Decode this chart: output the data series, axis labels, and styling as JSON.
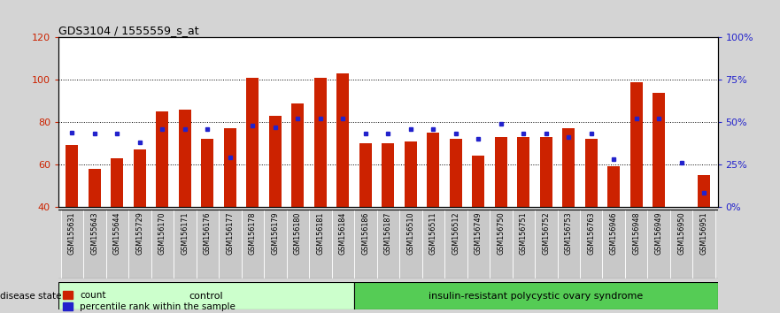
{
  "title": "GDS3104 / 1555559_s_at",
  "samples": [
    "GSM155631",
    "GSM155643",
    "GSM155644",
    "GSM155729",
    "GSM156170",
    "GSM156171",
    "GSM156176",
    "GSM156177",
    "GSM156178",
    "GSM156179",
    "GSM156180",
    "GSM156181",
    "GSM156184",
    "GSM156186",
    "GSM156187",
    "GSM156510",
    "GSM156511",
    "GSM156512",
    "GSM156749",
    "GSM156750",
    "GSM156751",
    "GSM156752",
    "GSM156753",
    "GSM156763",
    "GSM156946",
    "GSM156948",
    "GSM156949",
    "GSM156950",
    "GSM156951"
  ],
  "red_values": [
    69,
    58,
    63,
    67,
    85,
    86,
    72,
    77,
    101,
    83,
    89,
    101,
    103,
    70,
    70,
    71,
    75,
    72,
    64,
    73,
    73,
    73,
    77,
    72,
    59,
    99,
    94,
    40,
    55
  ],
  "blue_pct": [
    44,
    43,
    43,
    38,
    46,
    46,
    46,
    29,
    48,
    47,
    52,
    52,
    52,
    43,
    43,
    46,
    46,
    43,
    40,
    49,
    43,
    43,
    41,
    43,
    28,
    52,
    52,
    26,
    8
  ],
  "control_count": 13,
  "disease_count": 16,
  "ylim_left": [
    40,
    120
  ],
  "yticks_left": [
    40,
    60,
    80,
    100,
    120
  ],
  "yticks_right_pct": [
    0,
    25,
    50,
    75,
    100
  ],
  "ytick_labels_right": [
    "0%",
    "25%",
    "50%",
    "75%",
    "100%"
  ],
  "red_color": "#cc2200",
  "blue_color": "#2222cc",
  "control_bg": "#ccffcc",
  "disease_bg": "#55cc55",
  "bar_width": 0.55,
  "fig_bg": "#d4d4d4",
  "plot_bg": "#ffffff",
  "grid_color": "#000000",
  "label_bg": "#c8c8c8"
}
